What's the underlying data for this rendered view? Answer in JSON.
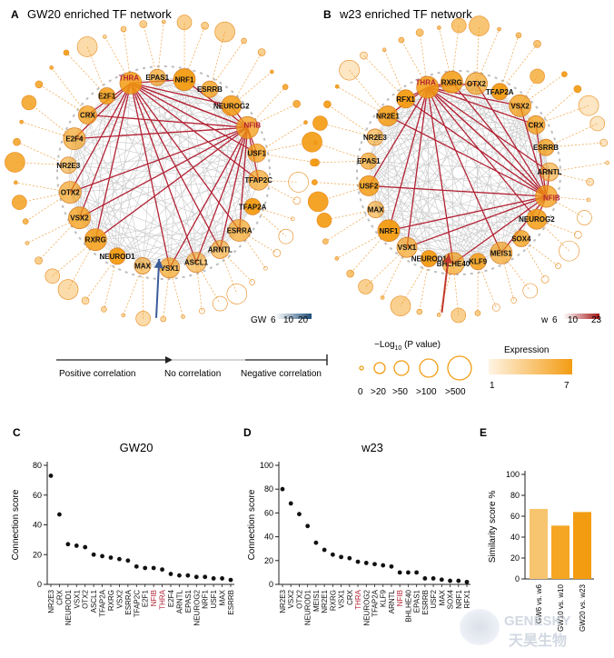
{
  "panels": {
    "A": {
      "label": "A",
      "title": "GW20 enriched TF network"
    },
    "B": {
      "label": "B",
      "title": "w23 enriched TF network"
    },
    "C": {
      "label": "C"
    },
    "D": {
      "label": "D"
    },
    "E": {
      "label": "E"
    }
  },
  "network_A": {
    "highlight": [
      "THRA",
      "NFIB"
    ],
    "nodes": [
      "THRA",
      "EPAS1",
      "NRF1",
      "ESRRB",
      "NEUROG2",
      "NFIB",
      "USF1",
      "TFAP2C",
      "TFAP2A",
      "ESRRA",
      "ARNTL",
      "ASCL1",
      "VSX1",
      "MAX",
      "NEUROD1",
      "RXRG",
      "VSX2",
      "OTX2",
      "NR2E3",
      "E2F4",
      "CRX",
      "E2F1"
    ],
    "scale": {
      "label": "GW",
      "ticks": [
        "6",
        "10",
        "20"
      ]
    },
    "arrow_color": "#3b5b9a"
  },
  "network_B": {
    "highlight": [
      "THRA",
      "NFIB"
    ],
    "nodes": [
      "THRA",
      "RXRG",
      "OTX2",
      "TFAP2A",
      "VSX2",
      "CRX",
      "ESRRB",
      "ARNTL",
      "NFIB",
      "NEUROG2",
      "SOX4",
      "MEIS1",
      "KLF9",
      "BHLHE40",
      "NEUROD1",
      "VSX1",
      "NRF1",
      "MAX",
      "USF2",
      "EPAS1",
      "NR2E3",
      "NR2E1",
      "RFX1"
    ],
    "scale": {
      "label": "w",
      "ticks": [
        "6",
        "10",
        "23"
      ]
    },
    "arrow_color": "#c0392b"
  },
  "legend": {
    "positive": "Positive correlation",
    "none": "No correlation",
    "negative": "Negative correlation",
    "pvalue_title_pre": "−Log",
    "pvalue_title_sub": "10",
    "pvalue_title_post": " (P value)",
    "pvalue_ticks": [
      "0",
      ">20",
      ">50",
      ">100",
      ">500"
    ],
    "expression_title": "Expression",
    "expression_min": "1",
    "expression_max": "7"
  },
  "watermark": {
    "text": "GENESKY",
    "text2": "天昊生物"
  },
  "chart_data": [
    {
      "type": "scatter",
      "title": "GW20",
      "ylabel": "Connection score",
      "ylim": [
        0,
        80
      ],
      "yticks": [
        0,
        20,
        40,
        60,
        80
      ],
      "categories": [
        "NR2E3",
        "CRX",
        "NEUROD1",
        "VSX1",
        "OTX2",
        "ASCL1",
        "TFAP2A",
        "RXRG",
        "VSX2",
        "ESRRA",
        "TFAP2C",
        "E2F1",
        "NFIB",
        "THRA",
        "E2F4",
        "ARNTL",
        "EPAS1",
        "NEUROG2",
        "NRF1",
        "USF1",
        "MAX",
        "ESRRB"
      ],
      "values": [
        73,
        47,
        27,
        26,
        25,
        20,
        19,
        18,
        17,
        16,
        12,
        11,
        11,
        10,
        7,
        6,
        6,
        5,
        5,
        4,
        4,
        3
      ],
      "highlight": [
        "NFIB",
        "THRA"
      ]
    },
    {
      "type": "scatter",
      "title": "w23",
      "ylabel": "Connection score",
      "ylim": [
        0,
        100
      ],
      "yticks": [
        0,
        20,
        40,
        60,
        80,
        100
      ],
      "categories": [
        "NR2E3",
        "VSX2",
        "OTX2",
        "NEUROD1",
        "MEIS1",
        "NR2E1",
        "RXRG",
        "VSX1",
        "CRX",
        "THRA",
        "NEUROG2",
        "TFAP2A",
        "KLF9",
        "ARNTL",
        "NFIB",
        "BHLHE40",
        "EPAS1",
        "ESRRB",
        "USF2",
        "MAX",
        "SOX4",
        "NRF1",
        "RFX1"
      ],
      "values": [
        80,
        68,
        59,
        49,
        35,
        29,
        25,
        23,
        22,
        19,
        18,
        17,
        16,
        15,
        10,
        10,
        10,
        5,
        5,
        4,
        3,
        3,
        2
      ],
      "highlight": [
        "THRA",
        "NFIB"
      ]
    },
    {
      "type": "bar",
      "ylabel": "Similarity score %",
      "ylim": [
        0,
        100
      ],
      "yticks": [
        0,
        20,
        40,
        60,
        80,
        100
      ],
      "categories": [
        "GW6 vs. w6",
        "GW10 vs. w10",
        "GW20 vs. w23"
      ],
      "values": [
        67,
        51,
        64
      ],
      "colors": [
        "#f7c46f",
        "#f5a623",
        "#f39c12"
      ]
    }
  ]
}
